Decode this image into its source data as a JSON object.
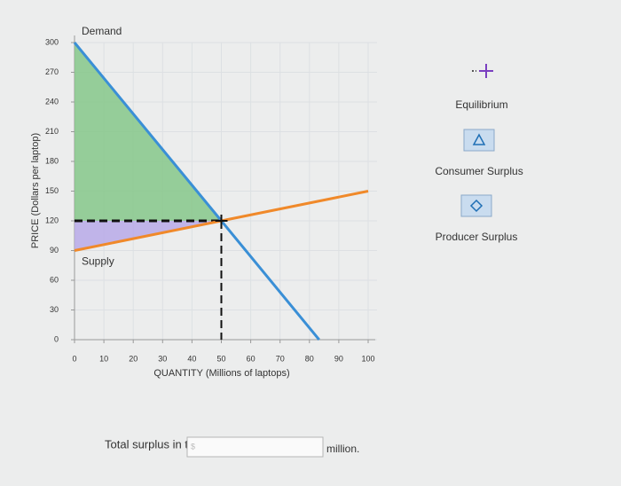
{
  "chart_data": {
    "type": "line",
    "x_label": "QUANTITY (Millions of laptops)",
    "y_label": "PRICE (Dollars per laptop)",
    "series": [
      {
        "name": "Demand",
        "color": "#3a8fd6",
        "x": [
          0,
          50,
          83.3
        ],
        "values": [
          300,
          120,
          0
        ]
      },
      {
        "name": "Supply",
        "color": "#f0892a",
        "x": [
          0,
          50,
          100
        ],
        "values": [
          90,
          120,
          150
        ]
      }
    ],
    "areas": [
      {
        "name": "Consumer Surplus",
        "color": "#86c78a",
        "x": [
          0,
          50,
          0
        ],
        "values": [
          300,
          120,
          120
        ]
      },
      {
        "name": "Producer Surplus",
        "color": "#b8a9e8",
        "x": [
          0,
          50,
          0
        ],
        "values": [
          120,
          120,
          90
        ]
      }
    ],
    "equilibrium": {
      "name": "Equilibrium",
      "x": 50,
      "value": 120
    },
    "xlim": [
      0,
      100
    ],
    "ylim": [
      0,
      300
    ],
    "xticks": [
      0,
      10,
      20,
      30,
      40,
      50,
      60,
      70,
      80,
      90,
      100
    ],
    "yticks": [
      0,
      30,
      60,
      90,
      120,
      150,
      180,
      210,
      240,
      270,
      300
    ],
    "grid": true
  },
  "question": {
    "prompt": "Total surplus in this market is",
    "input_placeholder": "$",
    "unit": "million."
  }
}
